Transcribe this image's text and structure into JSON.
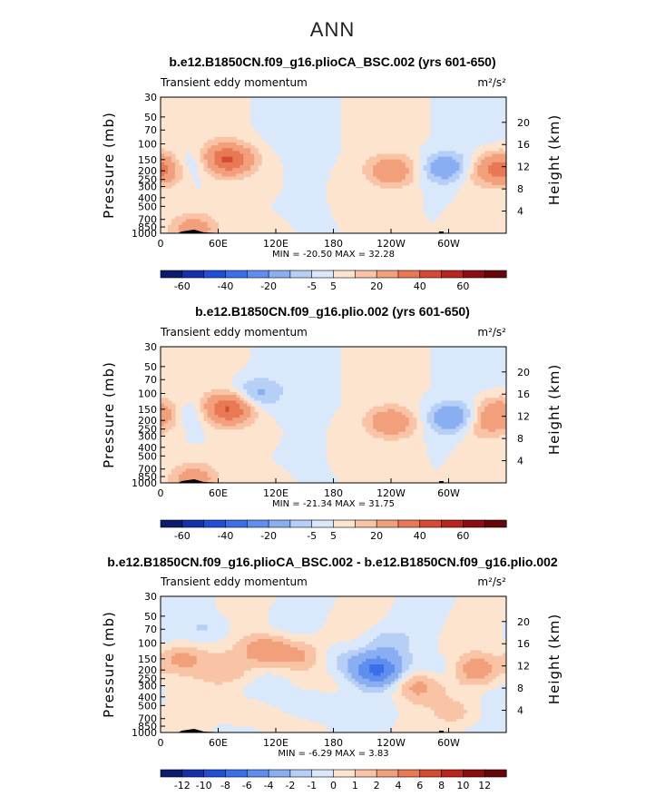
{
  "page_title": "ANN",
  "chart_data": [
    {
      "type": "heatmap",
      "title": "b.e12.B1850CN.f09_g16.plioCA_BSC.002 (yrs 601-650)",
      "subtitle": "Transient eddy momentum",
      "units": "m²/s²",
      "ylabel": "Pressure (mb)",
      "ylabel_right": "Height (km)",
      "x_ticks": [
        "0",
        "60E",
        "120E",
        "180",
        "120W",
        "60W"
      ],
      "y_ticks": [
        "30",
        "50",
        "70",
        "100",
        "150",
        "200",
        "250",
        "300",
        "400",
        "500",
        "700",
        "850",
        "1000"
      ],
      "y_ticks_right": [
        "20",
        "16",
        "12",
        "8",
        "4"
      ],
      "min_max_text": "MIN = -20.50   MAX =  32.28",
      "colorbar_labels": [
        "-60",
        "-40",
        "-20",
        "-5",
        "5",
        "20",
        "40",
        "60"
      ],
      "features": [
        {
          "lon": 70,
          "p": 150,
          "v": 32
        },
        {
          "lon": 0,
          "p": 200,
          "v": 12
        },
        {
          "lon": 30,
          "p": 170,
          "v": -8
        },
        {
          "lon": 240,
          "p": 200,
          "v": 18
        },
        {
          "lon": 300,
          "p": 190,
          "v": -20
        },
        {
          "lon": 320,
          "p": 220,
          "v": 8
        },
        {
          "lon": 355,
          "p": 180,
          "v": 15
        },
        {
          "lon": 35,
          "p": 900,
          "v": 15
        }
      ]
    },
    {
      "type": "heatmap",
      "title": "b.e12.B1850CN.f09_g16.plio.002 (yrs 601-650)",
      "subtitle": "Transient eddy momentum",
      "units": "m²/s²",
      "ylabel": "Pressure (mb)",
      "ylabel_right": "Height (km)",
      "x_ticks": [
        "0",
        "60E",
        "120E",
        "180",
        "120W",
        "60W"
      ],
      "y_ticks": [
        "30",
        "50",
        "70",
        "100",
        "150",
        "200",
        "250",
        "300",
        "400",
        "500",
        "700",
        "850",
        "1000"
      ],
      "y_ticks_right": [
        "20",
        "16",
        "12",
        "8",
        "4"
      ],
      "min_max_text": "MIN = -21.34   MAX =  31.75",
      "colorbar_labels": [
        "-60",
        "-40",
        "-20",
        "-5",
        "5",
        "20",
        "40",
        "60"
      ],
      "features": [
        {
          "lon": 70,
          "p": 150,
          "v": 32
        },
        {
          "lon": 0,
          "p": 180,
          "v": 12
        },
        {
          "lon": 30,
          "p": 170,
          "v": -8
        },
        {
          "lon": 100,
          "p": 100,
          "v": -12
        },
        {
          "lon": 240,
          "p": 210,
          "v": 18
        },
        {
          "lon": 305,
          "p": 190,
          "v": -21
        },
        {
          "lon": 330,
          "p": 230,
          "v": 10
        },
        {
          "lon": 350,
          "p": 150,
          "v": 8
        },
        {
          "lon": 35,
          "p": 900,
          "v": 15
        }
      ]
    },
    {
      "type": "heatmap",
      "title": "b.e12.B1850CN.f09_g16.plioCA_BSC.002 - b.e12.B1850CN.f09_g16.plio.002",
      "subtitle": "Transient eddy momentum",
      "units": "m²/s²",
      "ylabel": "Pressure (mb)",
      "ylabel_right": "Height (km)",
      "x_ticks": [
        "0",
        "60E",
        "120E",
        "180",
        "120W",
        "60W"
      ],
      "y_ticks": [
        "30",
        "50",
        "70",
        "100",
        "150",
        "200",
        "250",
        "300",
        "400",
        "500",
        "700",
        "850",
        "1000"
      ],
      "y_ticks_right": [
        "20",
        "16",
        "12",
        "8",
        "4"
      ],
      "min_max_text": "MIN =  -6.29   MAX =   3.83",
      "colorbar_labels": [
        "-12",
        "-10",
        "-8",
        "-6",
        "-4",
        "-2",
        "-1",
        "0",
        "1",
        "2",
        "4",
        "6",
        "8",
        "10",
        "12"
      ],
      "features": [
        {
          "lon": 225,
          "p": 200,
          "v": -6.3
        },
        {
          "lon": 185,
          "p": 150,
          "v": -1.5
        },
        {
          "lon": 235,
          "p": 100,
          "v": -1.2
        },
        {
          "lon": 20,
          "p": 150,
          "v": 2.5
        },
        {
          "lon": 70,
          "p": 200,
          "v": 1.5
        },
        {
          "lon": 110,
          "p": 120,
          "v": 3.5
        },
        {
          "lon": 145,
          "p": 140,
          "v": 2.2
        },
        {
          "lon": 265,
          "p": 300,
          "v": 2.5
        },
        {
          "lon": 330,
          "p": 200,
          "v": 3.0
        },
        {
          "lon": 295,
          "p": 200,
          "v": -1.2
        },
        {
          "lon": 50,
          "p": 70,
          "v": -1.2
        },
        {
          "lon": 160,
          "p": 500,
          "v": -1.2
        },
        {
          "lon": 310,
          "p": 600,
          "v": 1.2
        },
        {
          "lon": 90,
          "p": 600,
          "v": 1.2
        }
      ]
    }
  ]
}
